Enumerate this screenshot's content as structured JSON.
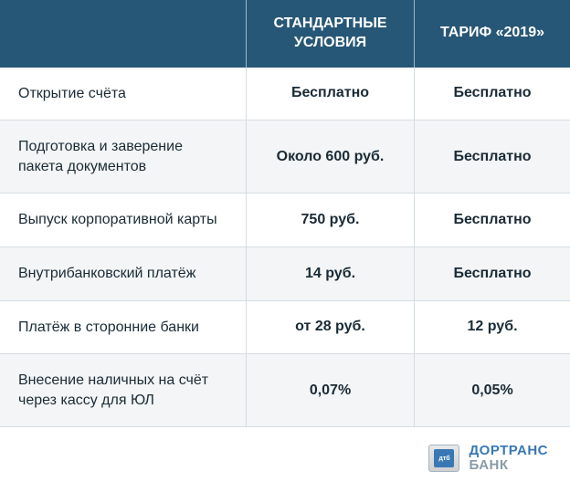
{
  "table": {
    "header": {
      "col1": "",
      "col2": "СТАНДАРТНЫЕ УСЛОВИЯ",
      "col3": "ТАРИФ «2019»"
    },
    "rows": [
      {
        "label": "Открытие счёта",
        "standard": "Бесплатно",
        "tariff2019": "Бесплатно"
      },
      {
        "label": "Подготовка и заверение пакета документов",
        "standard": "Около 600 руб.",
        "tariff2019": "Бесплатно"
      },
      {
        "label": "Выпуск корпоративной карты",
        "standard": "750 руб.",
        "tariff2019": "Бесплатно"
      },
      {
        "label": "Внутрибанковский платёж",
        "standard": "14 руб.",
        "tariff2019": "Бесплатно"
      },
      {
        "label": "Платёж в сторонние банки",
        "standard": "от 28 руб.",
        "tariff2019": "12 руб."
      },
      {
        "label": "Внесение наличных на счёт через кассу для ЮЛ",
        "standard": "0,07%",
        "tariff2019": "0,05%"
      }
    ]
  },
  "logo": {
    "badge_text": "дтб",
    "line1": "ДОРТРАНС",
    "line2": "БАНК"
  },
  "colors": {
    "header_bg": "#275776",
    "header_text": "#ffffff",
    "row_alt_bg": "#f3f5f6",
    "border": "#d5dde2",
    "text": "#1a2b36",
    "logo_blue": "#3a78b5",
    "logo_gray": "#8a9ba8"
  }
}
